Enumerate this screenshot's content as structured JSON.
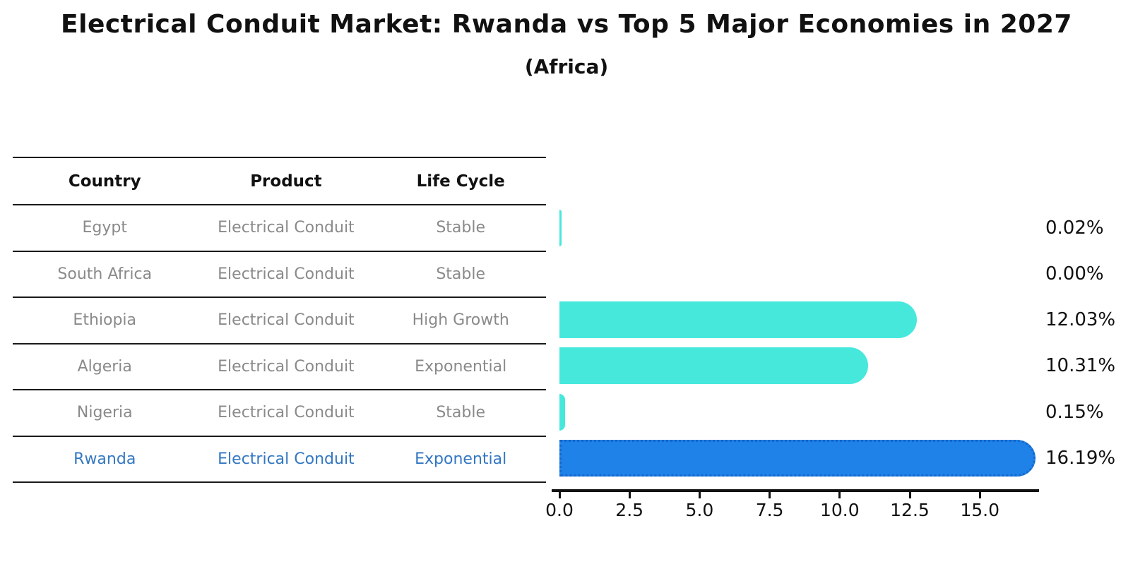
{
  "title": "Electrical Conduit Market: Rwanda vs Top 5 Major Economies in 2027",
  "subtitle": "(Africa)",
  "colors": {
    "bar": "#46e8dc",
    "highlight_bar": "#1e82e8",
    "highlight_bar_border": "#1766cb",
    "highlight_text": "#3377c2",
    "muted_text": "#8a8a8a",
    "text": "#111111"
  },
  "table": {
    "headers": [
      "Country",
      "Product",
      "Life Cycle"
    ],
    "rows": [
      {
        "country": "Egypt",
        "product": "Electrical Conduit",
        "life_cycle": "Stable",
        "highlighted": false
      },
      {
        "country": "South Africa",
        "product": "Electrical Conduit",
        "life_cycle": "Stable",
        "highlighted": false
      },
      {
        "country": "Ethiopia",
        "product": "Electrical Conduit",
        "life_cycle": "High Growth",
        "highlighted": false
      },
      {
        "country": "Algeria",
        "product": "Electrical Conduit",
        "life_cycle": "Exponential",
        "highlighted": false
      },
      {
        "country": "Nigeria",
        "product": "Electrical Conduit",
        "life_cycle": "Stable",
        "highlighted": false
      },
      {
        "country": "Rwanda",
        "product": "Electrical Conduit",
        "life_cycle": "Exponential",
        "highlighted": true
      }
    ]
  },
  "chart_data": {
    "type": "bar",
    "orientation": "horizontal",
    "title": "Electrical Conduit Market: Rwanda vs Top 5 Major Economies in 2027 (Africa)",
    "categories": [
      "Egypt",
      "South Africa",
      "Ethiopia",
      "Algeria",
      "Nigeria",
      "Rwanda"
    ],
    "values": [
      0.02,
      0.0,
      12.03,
      10.31,
      0.15,
      16.19
    ],
    "value_labels": [
      "0.02%",
      "0.00%",
      "12.03%",
      "10.31%",
      "0.15%",
      "16.19%"
    ],
    "unit": "%",
    "xlim": [
      0,
      17
    ],
    "x_ticks": [
      "0.0",
      "2.5",
      "5.0",
      "7.5",
      "10.0",
      "12.5",
      "15.0"
    ],
    "x_tick_values": [
      0,
      2.5,
      5,
      7.5,
      10,
      12.5,
      15
    ],
    "grid": false,
    "legend": false,
    "highlight_category": "Rwanda"
  }
}
